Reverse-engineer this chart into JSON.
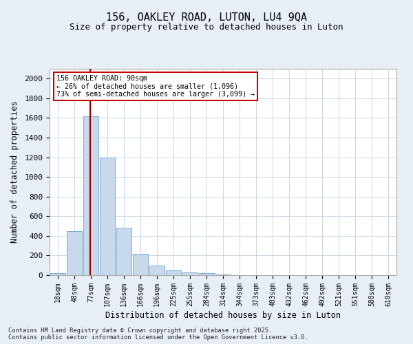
{
  "title_line1": "156, OAKLEY ROAD, LUTON, LU4 9QA",
  "title_line2": "Size of property relative to detached houses in Luton",
  "xlabel": "Distribution of detached houses by size in Luton",
  "ylabel": "Number of detached properties",
  "categories": [
    "18sqm",
    "48sqm",
    "77sqm",
    "107sqm",
    "136sqm",
    "166sqm",
    "196sqm",
    "225sqm",
    "255sqm",
    "284sqm",
    "314sqm",
    "344sqm",
    "373sqm",
    "403sqm",
    "432sqm",
    "462sqm",
    "492sqm",
    "521sqm",
    "551sqm",
    "580sqm",
    "610sqm"
  ],
  "values": [
    20,
    450,
    1620,
    1200,
    480,
    220,
    100,
    50,
    30,
    20,
    10,
    2,
    0,
    0,
    0,
    0,
    0,
    0,
    0,
    0,
    0
  ],
  "bar_color": "#c8d9ec",
  "bar_edge_color": "#7aafd4",
  "marker_line_color": "#990000",
  "annotation_box_edge_color": "#cc0000",
  "annotation_line1": "156 OAKLEY ROAD: 90sqm",
  "annotation_line2": "← 26% of detached houses are smaller (1,096)",
  "annotation_line3": "73% of semi-detached houses are larger (3,099) →",
  "ylim": [
    0,
    2100
  ],
  "yticks": [
    0,
    200,
    400,
    600,
    800,
    1000,
    1200,
    1400,
    1600,
    1800,
    2000
  ],
  "footer_line1": "Contains HM Land Registry data © Crown copyright and database right 2025.",
  "footer_line2": "Contains public sector information licensed under the Open Government Licence v3.0.",
  "background_color": "#e8eef5",
  "plot_bg_color": "#ffffff"
}
